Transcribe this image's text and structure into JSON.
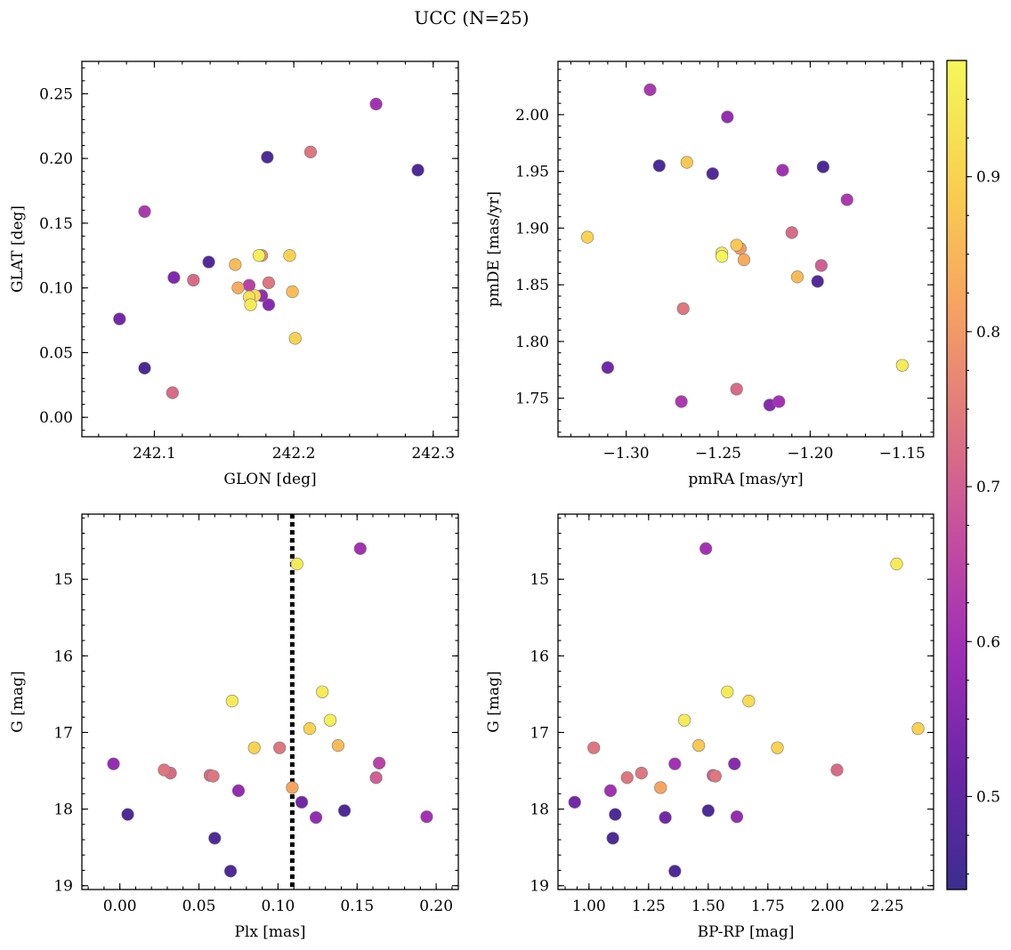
{
  "figure": {
    "title": "UCC (N=25)",
    "colorbar": {
      "range": [
        0.44,
        0.975
      ],
      "ticks": [
        "0.5",
        "0.6",
        "0.7",
        "0.8",
        "0.9"
      ],
      "tick_values": [
        0.5,
        0.6,
        0.7,
        0.8,
        0.9
      ],
      "colormap": "plasma",
      "colormap_stops": [
        "#3b2e8f",
        "#6a26a6",
        "#9e2fb5",
        "#c64ea0",
        "#e07a7c",
        "#f7a65f",
        "#f9d24f",
        "#f4f75a"
      ]
    }
  },
  "chart_data": [
    {
      "type": "scatter",
      "id": "sky",
      "xlabel": "GLON [deg]",
      "ylabel": "GLAT [deg]",
      "xlim": [
        242.048,
        242.318
      ],
      "ylim": [
        -0.015,
        0.275
      ],
      "xticks": [
        242.1,
        242.2,
        242.3
      ],
      "xtick_labels": [
        "242.1",
        "242.2",
        "242.3"
      ],
      "yticks": [
        0.0,
        0.05,
        0.1,
        0.15,
        0.2,
        0.25
      ],
      "ytick_labels": [
        "0.00",
        "0.05",
        "0.10",
        "0.15",
        "0.20",
        "0.25"
      ],
      "x": [
        242.259,
        242.289,
        242.181,
        242.212,
        242.093,
        242.075,
        242.114,
        242.139,
        242.128,
        242.158,
        242.16,
        242.175,
        242.177,
        242.197,
        242.168,
        242.172,
        242.182,
        242.177,
        242.182,
        242.168,
        242.169,
        242.199,
        242.201,
        242.093,
        242.113
      ],
      "y": [
        0.242,
        0.191,
        0.201,
        0.205,
        0.159,
        0.076,
        0.108,
        0.12,
        0.106,
        0.118,
        0.1,
        0.125,
        0.125,
        0.125,
        0.102,
        0.094,
        0.104,
        0.094,
        0.087,
        0.093,
        0.087,
        0.097,
        0.061,
        0.038,
        0.019
      ],
      "colors": [
        0.6,
        0.47,
        0.47,
        0.74,
        0.62,
        0.53,
        0.55,
        0.48,
        0.72,
        0.86,
        0.83,
        0.96,
        0.78,
        0.9,
        0.64,
        0.92,
        0.74,
        0.58,
        0.56,
        0.93,
        0.95,
        0.86,
        0.9,
        0.46,
        0.72
      ]
    },
    {
      "type": "scatter",
      "id": "pm",
      "xlabel": "pmRA [mas/yr]",
      "ylabel": "pmDE [mas/yr]",
      "xlim": [
        -1.337,
        -1.133
      ],
      "ylim": [
        1.716,
        2.047
      ],
      "xticks": [
        -1.3,
        -1.25,
        -1.2,
        -1.15
      ],
      "xtick_labels": [
        "−1.30",
        "−1.25",
        "−1.20",
        "−1.15"
      ],
      "yticks": [
        1.75,
        1.8,
        1.85,
        1.9,
        1.95,
        2.0
      ],
      "ytick_labels": [
        "1.75",
        "1.80",
        "1.85",
        "1.90",
        "1.95",
        "2.00"
      ],
      "x": [
        -1.287,
        -1.245,
        -1.282,
        -1.253,
        -1.267,
        -1.193,
        -1.215,
        -1.18,
        -1.321,
        -1.21,
        -1.24,
        -1.238,
        -1.248,
        -1.248,
        -1.236,
        -1.194,
        -1.207,
        -1.196,
        -1.269,
        -1.31,
        -1.15,
        -1.27,
        -1.24,
        -1.222,
        -1.217
      ],
      "y": [
        2.022,
        1.998,
        1.955,
        1.948,
        1.958,
        1.954,
        1.951,
        1.925,
        1.892,
        1.896,
        1.885,
        1.882,
        1.878,
        1.875,
        1.872,
        1.867,
        1.857,
        1.853,
        1.829,
        1.777,
        1.779,
        1.747,
        1.758,
        1.744,
        1.747
      ],
      "colors": [
        0.62,
        0.58,
        0.47,
        0.48,
        0.88,
        0.47,
        0.6,
        0.62,
        0.9,
        0.72,
        0.88,
        0.8,
        0.95,
        0.97,
        0.83,
        0.7,
        0.86,
        0.48,
        0.74,
        0.53,
        0.95,
        0.62,
        0.72,
        0.56,
        0.6
      ]
    },
    {
      "type": "scatter",
      "id": "plx",
      "xlabel": "Plx [mas]",
      "ylabel": "G [mag]",
      "xlim": [
        -0.024,
        0.214
      ],
      "ylim": [
        19.05,
        14.15
      ],
      "y_inverted": true,
      "xticks": [
        0.0,
        0.05,
        0.1,
        0.15,
        0.2
      ],
      "xtick_labels": [
        "0.00",
        "0.05",
        "0.10",
        "0.15",
        "0.20"
      ],
      "yticks": [
        15,
        16,
        17,
        18,
        19
      ],
      "ytick_labels": [
        "15",
        "16",
        "17",
        "18",
        "19"
      ],
      "vline": 0.109,
      "x": [
        0.152,
        0.112,
        0.128,
        0.071,
        0.133,
        0.12,
        0.138,
        0.085,
        0.101,
        -0.004,
        0.164,
        0.028,
        0.032,
        0.057,
        0.059,
        0.162,
        0.109,
        0.075,
        0.115,
        0.005,
        0.142,
        0.194,
        0.124,
        0.06,
        0.07
      ],
      "y": [
        14.6,
        14.8,
        16.47,
        16.59,
        16.84,
        16.95,
        17.17,
        17.2,
        17.2,
        17.41,
        17.4,
        17.49,
        17.53,
        17.56,
        17.57,
        17.59,
        17.72,
        17.76,
        17.91,
        18.07,
        18.02,
        18.1,
        18.11,
        18.38,
        18.81
      ],
      "colors": [
        0.6,
        0.95,
        0.95,
        0.95,
        0.96,
        0.9,
        0.86,
        0.9,
        0.74,
        0.58,
        0.64,
        0.74,
        0.72,
        0.72,
        0.74,
        0.7,
        0.82,
        0.58,
        0.53,
        0.47,
        0.47,
        0.6,
        0.58,
        0.47,
        0.47
      ]
    },
    {
      "type": "scatter",
      "id": "cmd",
      "xlabel": "BP-RP [mag]",
      "ylabel": "G [mag]",
      "xlim": [
        0.87,
        2.445
      ],
      "ylim": [
        19.05,
        14.15
      ],
      "y_inverted": true,
      "xticks": [
        1.0,
        1.25,
        1.5,
        1.75,
        2.0,
        2.25
      ],
      "xtick_labels": [
        "1.00",
        "1.25",
        "1.50",
        "1.75",
        "2.00",
        "2.25"
      ],
      "yticks": [
        15,
        16,
        17,
        18,
        19
      ],
      "ytick_labels": [
        "15",
        "16",
        "17",
        "18",
        "19"
      ],
      "x": [
        1.49,
        2.29,
        1.58,
        1.67,
        1.4,
        2.38,
        1.46,
        1.79,
        1.02,
        1.36,
        1.61,
        2.04,
        1.22,
        1.16,
        1.53,
        1.52,
        1.3,
        1.09,
        0.94,
        1.11,
        1.5,
        1.62,
        1.32,
        1.1,
        1.36
      ],
      "y": [
        14.6,
        14.8,
        16.47,
        16.59,
        16.84,
        16.95,
        17.17,
        17.2,
        17.2,
        17.41,
        17.41,
        17.49,
        17.53,
        17.59,
        17.57,
        17.56,
        17.72,
        17.76,
        17.91,
        18.07,
        18.02,
        18.1,
        18.11,
        18.38,
        18.81
      ],
      "colors": [
        0.6,
        0.95,
        0.95,
        0.92,
        0.95,
        0.9,
        0.88,
        0.9,
        0.74,
        0.6,
        0.56,
        0.72,
        0.74,
        0.74,
        0.74,
        0.7,
        0.82,
        0.6,
        0.53,
        0.47,
        0.47,
        0.58,
        0.53,
        0.47,
        0.47
      ]
    }
  ]
}
